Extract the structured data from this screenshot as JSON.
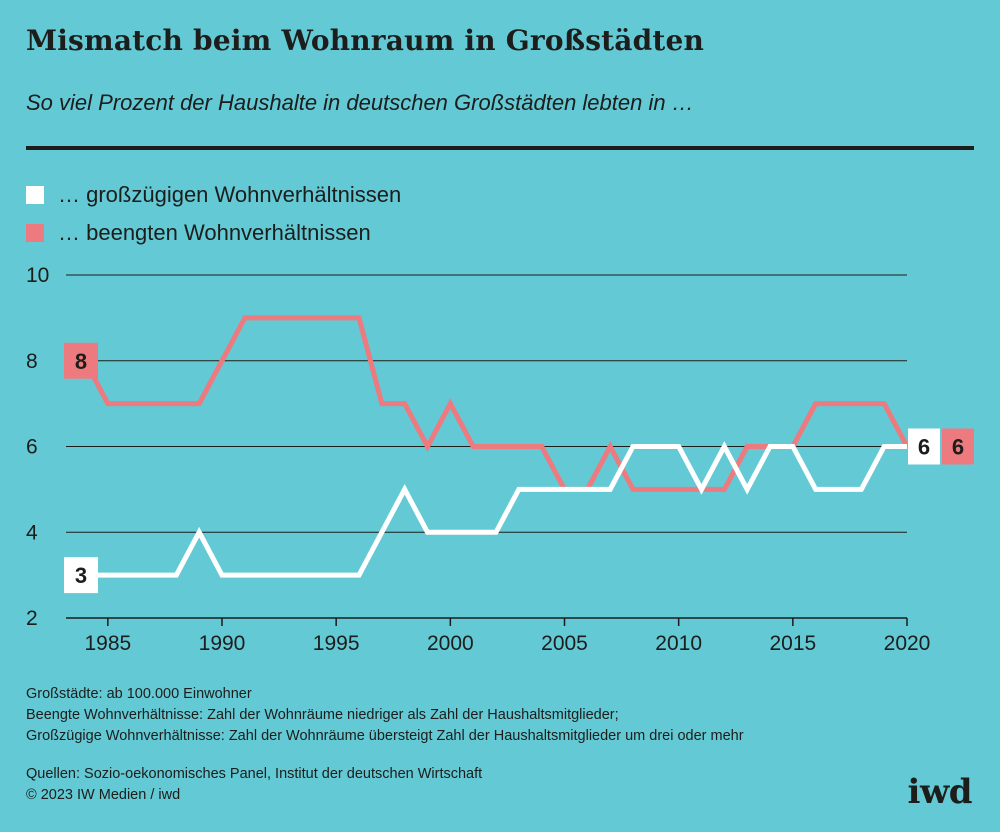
{
  "header": {
    "title": "Mismatch beim Wohnraum in Großstädten",
    "subtitle": "So viel Prozent der Haushalte in deutschen Großstädten lebten in …"
  },
  "legend": [
    {
      "label": "… großzügigen Wohnverhältnissen",
      "color": "#ffffff"
    },
    {
      "label": "… beengten Wohnverhältnissen",
      "color": "#ed7a7e"
    }
  ],
  "chart_data": {
    "type": "line",
    "x": [
      1984,
      1985,
      1986,
      1987,
      1988,
      1989,
      1990,
      1991,
      1992,
      1993,
      1994,
      1995,
      1996,
      1997,
      1998,
      1999,
      2000,
      2001,
      2002,
      2003,
      2004,
      2005,
      2006,
      2007,
      2008,
      2009,
      2010,
      2011,
      2012,
      2013,
      2014,
      2015,
      2016,
      2017,
      2018,
      2019,
      2020
    ],
    "series": [
      {
        "name": "… großzügigen Wohnverhältnissen",
        "color": "#ffffff",
        "values": [
          3,
          3,
          3,
          3,
          3,
          4,
          3,
          3,
          3,
          3,
          3,
          3,
          3,
          4,
          5,
          4,
          4,
          4,
          4,
          5,
          5,
          5,
          5,
          5,
          6,
          6,
          6,
          5,
          6,
          5,
          6,
          6,
          5,
          5,
          5,
          6,
          6
        ]
      },
      {
        "name": "… beengten Wohnverhältnissen",
        "color": "#ed7a7e",
        "values": [
          8,
          7,
          7,
          7,
          7,
          7,
          8,
          9,
          9,
          9,
          9,
          9,
          9,
          7,
          7,
          6,
          7,
          6,
          6,
          6,
          6,
          5,
          5,
          6,
          5,
          5,
          5,
          5,
          5,
          6,
          6,
          6,
          7,
          7,
          7,
          7,
          6
        ]
      }
    ],
    "start_labels": [
      "3",
      "8"
    ],
    "end_labels": [
      "6",
      "6"
    ],
    "x_ticks": [
      1985,
      1990,
      1995,
      2000,
      2005,
      2010,
      2015,
      2020
    ],
    "y_ticks": [
      2,
      4,
      6,
      8,
      10
    ],
    "ylim": [
      2,
      10
    ],
    "xlim": [
      1984,
      2020
    ],
    "grid": "horizontal",
    "legend_position": "top-left"
  },
  "footnotes": [
    "Großstädte: ab 100.000 Einwohner",
    "Beengte Wohnverhältnisse: Zahl der Wohnräume niedriger als Zahl der Haushaltsmitglieder;",
    "Großzügige Wohnverhältnisse: Zahl der Wohnräume übersteigt Zahl der Haushaltsmitglieder um drei oder mehr"
  ],
  "sources": [
    "Quellen: Sozio-oekonomisches Panel, Institut der deutschen Wirtschaft",
    "© 2023 IW Medien / iwd"
  ],
  "logo": "iwd"
}
